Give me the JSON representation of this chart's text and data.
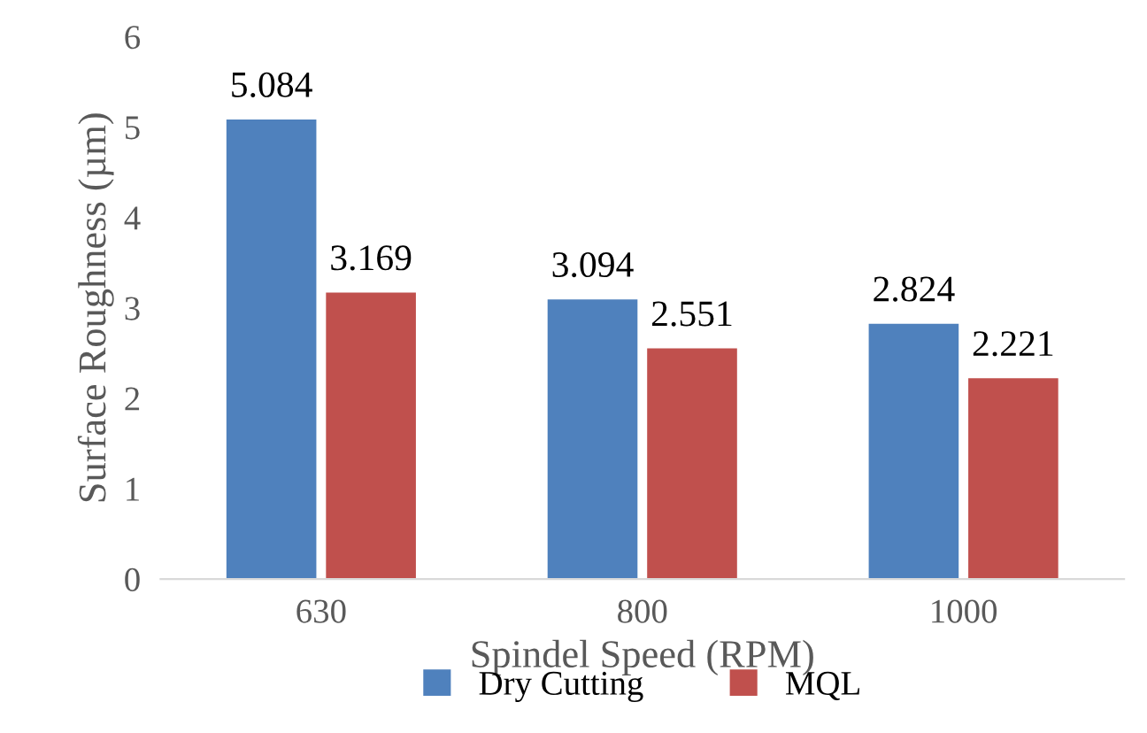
{
  "chart_data": {
    "type": "bar",
    "xlabel": "Spindel Speed (RPM)",
    "ylabel": "Surface Roughness (µm)",
    "categories": [
      "630",
      "800",
      "1000"
    ],
    "series": [
      {
        "name": "Dry Cutting",
        "color": "#4f81bd",
        "values": [
          5.084,
          3.094,
          2.824
        ]
      },
      {
        "name": "MQL",
        "color": "#c0504d",
        "values": [
          3.169,
          2.551,
          2.221
        ]
      }
    ],
    "ylim": [
      0,
      6
    ],
    "yticks": [
      0,
      1,
      2,
      3,
      4,
      5,
      6
    ],
    "grid": false,
    "legend": "bottom",
    "data_labels": true
  }
}
